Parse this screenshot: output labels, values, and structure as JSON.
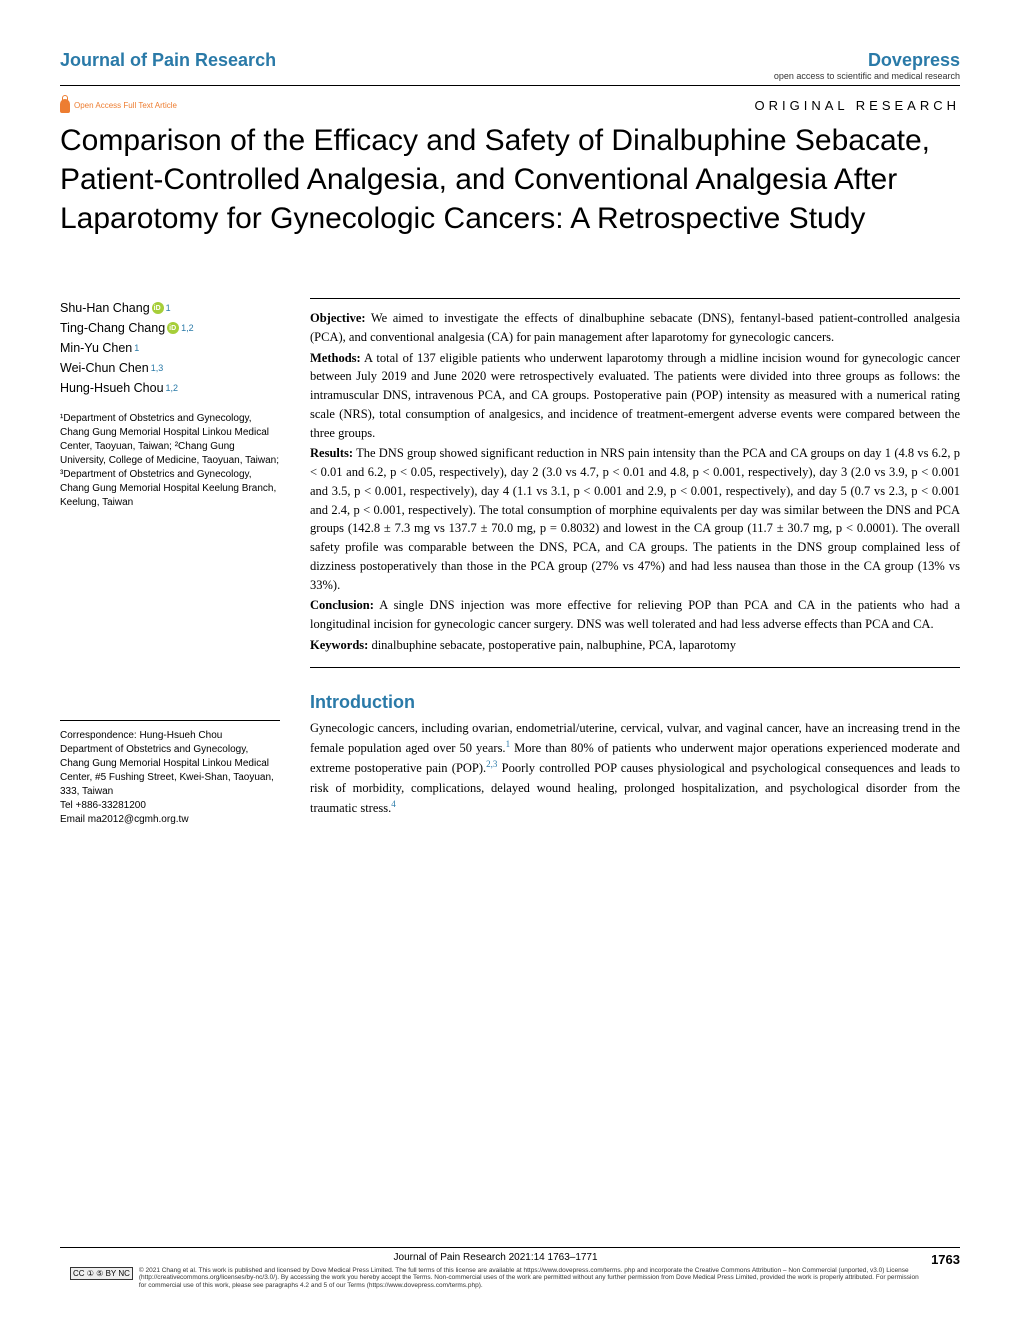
{
  "header": {
    "journal": "Journal of Pain Research",
    "publisher": "Dovepress",
    "publisher_sub": "open access to scientific and medical research",
    "oa_label": "Open Access Full Text Article",
    "article_type": "ORIGINAL RESEARCH"
  },
  "title": "Comparison of the Efficacy and Safety of Dinalbuphine Sebacate, Patient-Controlled Analgesia, and Conventional Analgesia After Laparotomy for Gynecologic Cancers: A Retrospective Study",
  "authors": [
    {
      "name": "Shu-Han Chang",
      "orcid": true,
      "aff": "1"
    },
    {
      "name": "Ting-Chang Chang",
      "orcid": true,
      "aff": "1,2"
    },
    {
      "name": "Min-Yu Chen",
      "orcid": false,
      "aff": "1"
    },
    {
      "name": "Wei-Chun Chen",
      "orcid": false,
      "aff": "1,3"
    },
    {
      "name": "Hung-Hsueh Chou",
      "orcid": false,
      "aff": "1,2"
    }
  ],
  "affiliations": "¹Department of Obstetrics and Gynecology, Chang Gung Memorial Hospital Linkou Medical Center, Taoyuan, Taiwan; ²Chang Gung University, College of Medicine, Taoyuan, Taiwan; ³Department of Obstetrics and Gynecology, Chang Gung Memorial Hospital Keelung Branch, Keelung, Taiwan",
  "abstract": {
    "objective_label": "Objective:",
    "objective": " We aimed to investigate the effects of dinalbuphine sebacate (DNS), fentanyl-based patient-controlled analgesia (PCA), and conventional analgesia (CA) for pain management after laparotomy for gynecologic cancers.",
    "methods_label": "Methods:",
    "methods": " A total of 137 eligible patients who underwent laparotomy through a midline incision wound for gynecologic cancer between July 2019 and June 2020 were retrospectively evaluated. The patients were divided into three groups as follows: the intramuscular DNS, intravenous PCA, and CA groups. Postoperative pain (POP) intensity as measured with a numerical rating scale (NRS), total consumption of analgesics, and incidence of treatment-emergent adverse events were compared between the three groups.",
    "results_label": "Results:",
    "results": " The DNS group showed significant reduction in NRS pain intensity than the PCA and CA groups on day 1 (4.8 vs 6.2, p < 0.01 and 6.2, p < 0.05, respectively), day 2 (3.0 vs 4.7, p < 0.01 and 4.8, p < 0.001, respectively), day 3 (2.0 vs 3.9, p < 0.001 and 3.5, p < 0.001, respectively), day 4 (1.1 vs 3.1, p < 0.001 and 2.9, p < 0.001, respectively), and day 5 (0.7 vs 2.3, p < 0.001 and 2.4, p < 0.001, respectively). The total consumption of morphine equivalents per day was similar between the DNS and PCA groups (142.8 ± 7.3 mg vs 137.7 ± 70.0 mg, p = 0.8032) and lowest in the CA group (11.7 ± 30.7 mg, p < 0.0001). The overall safety profile was comparable between the DNS, PCA, and CA groups. The patients in the DNS group complained less of dizziness postoperatively than those in the PCA group (27% vs 47%) and had less nausea than those in the CA group (13% vs 33%).",
    "conclusion_label": "Conclusion:",
    "conclusion": " A single DNS injection was more effective for relieving POP than PCA and CA in the patients who had a longitudinal incision for gynecologic cancer surgery. DNS was well tolerated and had less adverse effects than PCA and CA.",
    "keywords_label": "Keywords:",
    "keywords": " dinalbuphine sebacate, postoperative pain, nalbuphine, PCA, laparotomy"
  },
  "intro": {
    "heading": "Introduction",
    "text_parts": {
      "p1": "Gynecologic cancers, including ovarian, endometrial/uterine, cervical, vulvar, and vaginal cancer, have an increasing trend in the female population aged over 50 years.",
      "ref1": "1",
      "p2": " More than 80% of patients who underwent major operations experienced moderate and extreme postoperative pain (POP).",
      "ref2": "2,3",
      "p3": " Poorly controlled POP causes physiological and psychological consequences and leads to risk of morbidity, complications, delayed wound healing, prolonged hospitalization, and psychological disorder from the traumatic stress.",
      "ref3": "4"
    }
  },
  "correspondence": {
    "label": "Correspondence: Hung-Hsueh Chou",
    "body": "Department of Obstetrics and Gynecology, Chang Gung Memorial Hospital Linkou Medical Center, #5 Fushing Street, Kwei-Shan, Taoyuan, 333, Taiwan",
    "tel": "Tel +886-33281200",
    "email": "Email ma2012@cgmh.org.tw"
  },
  "footer": {
    "citation": "Journal of Pain Research 2021:14 1763–1771",
    "page": "1763",
    "cc": "CC ① ⑤ BY NC",
    "license": "© 2021 Chang et al. This work is published and licensed by Dove Medical Press Limited. The full terms of this license are available at https://www.dovepress.com/terms. php and incorporate the Creative Commons Attribution – Non Commercial (unported, v3.0) License (http://creativecommons.org/licenses/by-nc/3.0/). By accessing the work you hereby accept the Terms. Non-commercial uses of the work are permitted without any further permission from Dove Medical Press Limited, provided the work is properly attributed. For permission for commercial use of this work, please see paragraphs 4.2 and 5 of our Terms (https://www.dovepress.com/terms.php)."
  },
  "colors": {
    "accent": "#2a7aa8",
    "orcid": "#a6ce39",
    "oa": "#ed7d31",
    "text": "#000000",
    "bg": "#ffffff"
  }
}
